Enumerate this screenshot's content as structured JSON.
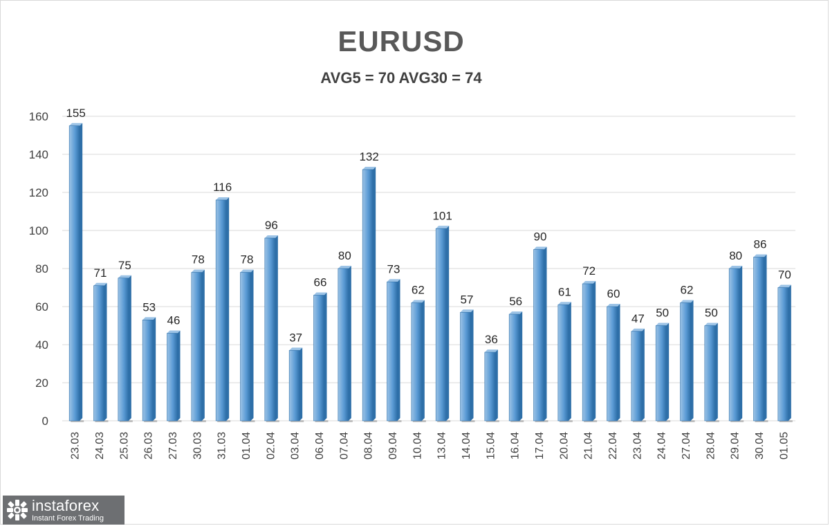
{
  "chart_data": {
    "type": "bar",
    "title": "EURUSD",
    "subtitle": "AVG5 = 70 AVG30 = 74",
    "categories": [
      "23.03",
      "24.03",
      "25.03",
      "26.03",
      "27.03",
      "30.03",
      "31.03",
      "01.04",
      "02.04",
      "03.04",
      "06.04",
      "07.04",
      "08.04",
      "09.04",
      "10.04",
      "13.04",
      "14.04",
      "15.04",
      "16.04",
      "17.04",
      "20.04",
      "21.04",
      "22.04",
      "23.04",
      "24.04",
      "27.04",
      "28.04",
      "29.04",
      "30.04",
      "01.05"
    ],
    "values": [
      155,
      71,
      75,
      53,
      46,
      78,
      116,
      78,
      96,
      37,
      66,
      80,
      132,
      73,
      62,
      101,
      57,
      36,
      56,
      90,
      61,
      72,
      60,
      47,
      50,
      62,
      50,
      80,
      86,
      70
    ],
    "ylim": [
      0,
      160
    ],
    "yticks": [
      0,
      20,
      40,
      60,
      80,
      100,
      120,
      140,
      160
    ],
    "grid": true,
    "data_labels": true,
    "bar_color": "#5b9bd5",
    "bar_color_dark": "#2e6fa8",
    "bar_color_light": "#9cc3e6",
    "grid_color": "#d9d9d9"
  },
  "watermark": {
    "brand": "instaforex",
    "tagline": "Instant Forex Trading",
    "icon": "instaforex-logo-icon"
  }
}
